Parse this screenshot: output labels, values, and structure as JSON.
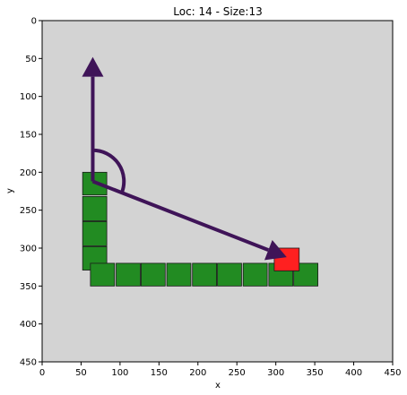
{
  "chart_data": {
    "type": "scatter",
    "title": "Loc: 14 - Size:13",
    "xlabel": "x",
    "ylabel": "y",
    "xlim": [
      0,
      450
    ],
    "ylim": [
      450,
      0
    ],
    "y_inverted": true,
    "grid": false,
    "x_ticks": [
      0,
      50,
      100,
      150,
      200,
      250,
      300,
      350,
      400,
      450
    ],
    "y_ticks": [
      0,
      50,
      100,
      150,
      200,
      250,
      300,
      350,
      400,
      450
    ],
    "background_color": "#d3d3d3",
    "snake_color": "#228b22",
    "food_color": "#ff2020",
    "arrow_color": "#3f1458",
    "snake_segments": [
      {
        "x": 52,
        "y": 200,
        "w": 31,
        "h": 30
      },
      {
        "x": 52,
        "y": 232,
        "w": 31,
        "h": 32
      },
      {
        "x": 52,
        "y": 265,
        "w": 31,
        "h": 32
      },
      {
        "x": 52,
        "y": 298,
        "w": 31,
        "h": 31
      },
      {
        "x": 62,
        "y": 320,
        "w": 31,
        "h": 30
      },
      {
        "x": 95,
        "y": 320,
        "w": 31,
        "h": 30
      },
      {
        "x": 127,
        "y": 320,
        "w": 31,
        "h": 30
      },
      {
        "x": 160,
        "y": 320,
        "w": 31,
        "h": 30
      },
      {
        "x": 193,
        "y": 320,
        "w": 31,
        "h": 30
      },
      {
        "x": 225,
        "y": 320,
        "w": 31,
        "h": 30
      },
      {
        "x": 258,
        "y": 320,
        "w": 31,
        "h": 30
      },
      {
        "x": 291,
        "y": 320,
        "w": 31,
        "h": 30
      },
      {
        "x": 323,
        "y": 320,
        "w": 31,
        "h": 30
      }
    ],
    "food": {
      "x": 298,
      "y": 300,
      "w": 32,
      "h": 30
    },
    "vectors": [
      {
        "name": "",
        "from": [
          65,
          212
        ],
        "to": [
          65,
          48
        ]
      },
      {
        "name": "",
        "from": [
          65,
          212
        ],
        "to": [
          314,
          312
        ]
      }
    ],
    "angle_arc": {
      "center": [
        65,
        212
      ],
      "radius": 40
    }
  }
}
